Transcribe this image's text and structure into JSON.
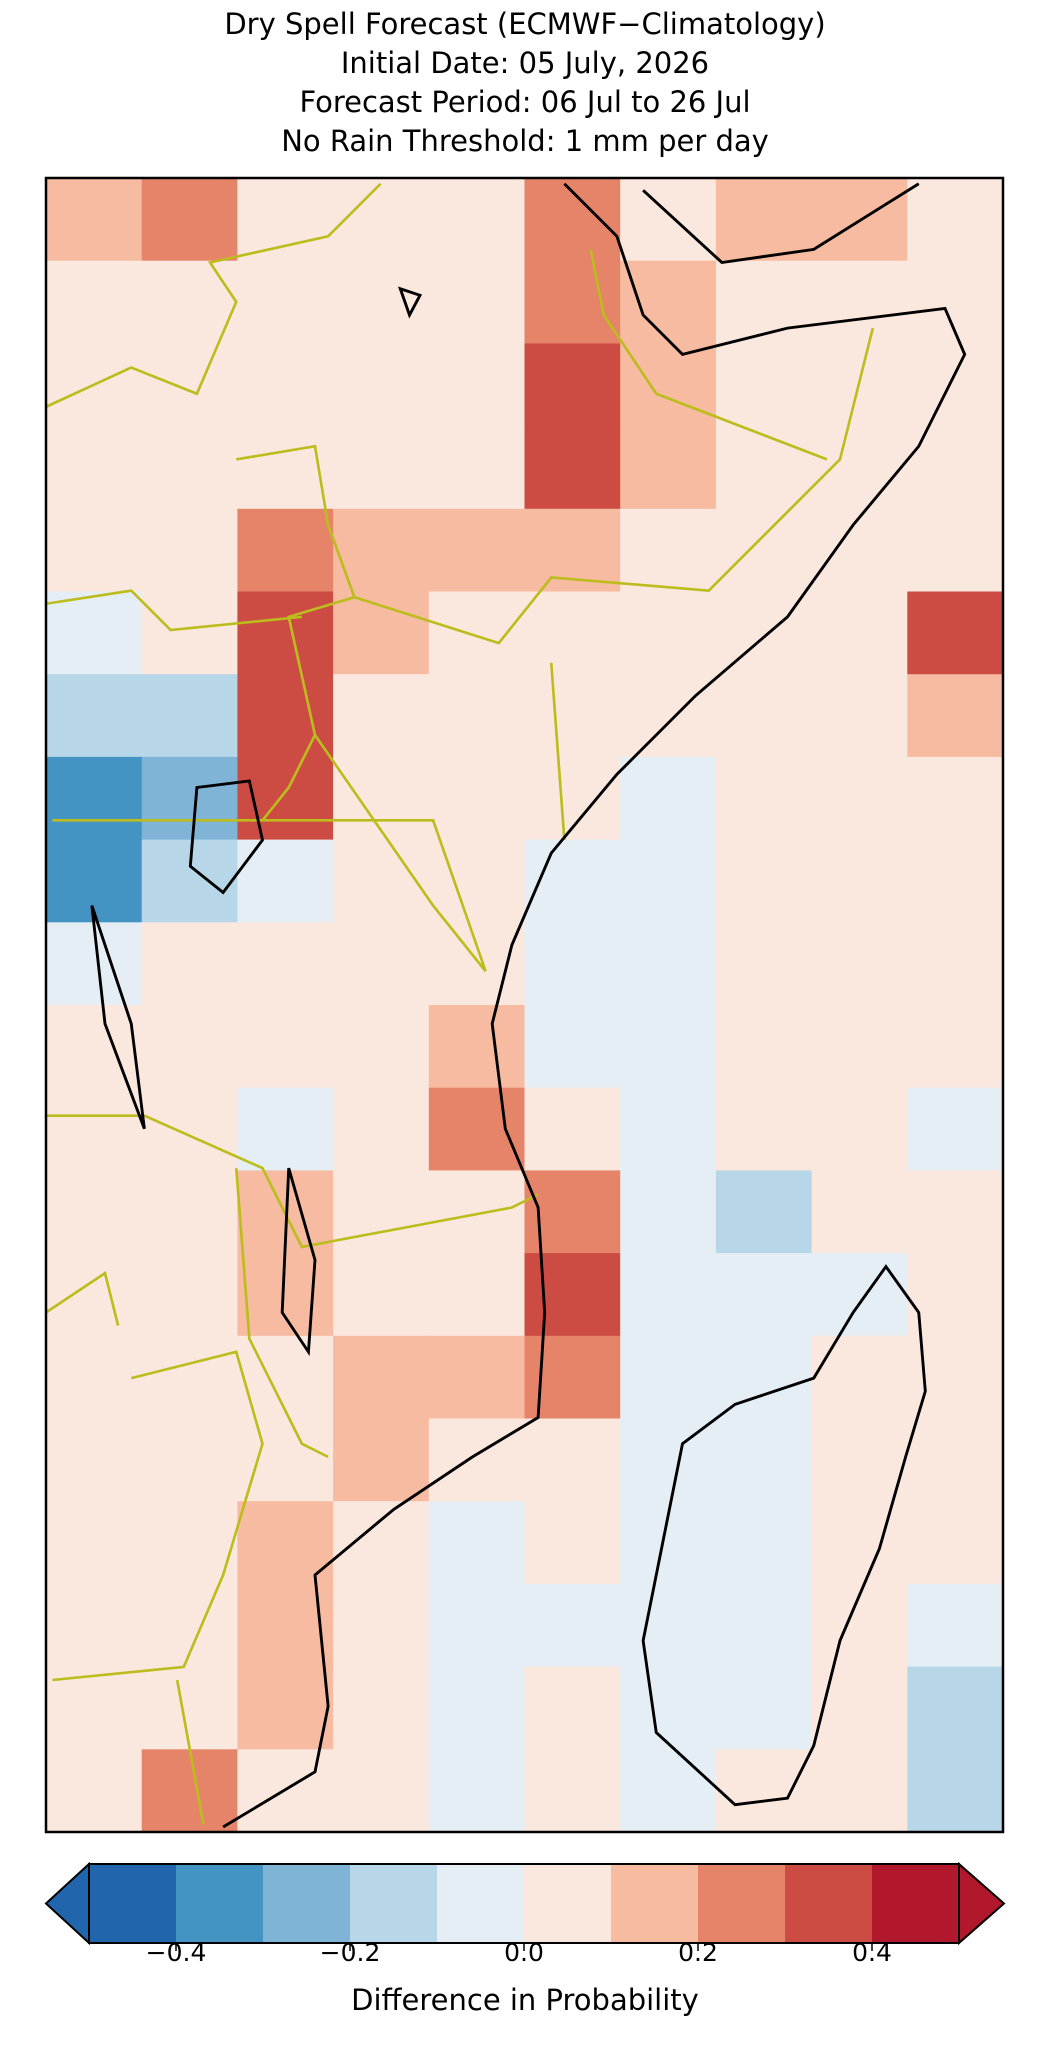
{
  "chart_data": {
    "type": "heatmap",
    "title": [
      "Dry Spell Forecast (ECMWF−Climatology)",
      "Initial Date: 05 July, 2026",
      "Forecast Period: 06 Jul to 26 Jul",
      "No Rain Threshold: 1 mm per day"
    ],
    "z": [
      [
        0.2,
        0.3,
        0.1,
        0.05,
        0.05,
        0.3,
        0.1,
        0.15,
        0.2,
        0.05
      ],
      [
        0.05,
        0.05,
        0.05,
        0.05,
        0.05,
        0.3,
        0.2,
        0.1,
        0.05,
        0.05
      ],
      [
        0.05,
        0.05,
        0.05,
        0.05,
        0.05,
        0.35,
        0.15,
        0.05,
        0.05,
        0.05
      ],
      [
        0.05,
        0.05,
        0.1,
        0.05,
        0.05,
        0.35,
        0.15,
        0.05,
        0.05,
        0.05
      ],
      [
        0.05,
        0.1,
        0.25,
        0.15,
        0.2,
        0.15,
        0.05,
        0.05,
        0.05,
        0.1
      ],
      [
        0.0,
        0.05,
        0.35,
        0.15,
        0.05,
        0.05,
        0.05,
        0.05,
        0.05,
        0.35
      ],
      [
        -0.15,
        -0.15,
        0.35,
        0.05,
        0.05,
        0.05,
        0.05,
        0.05,
        0.1,
        0.15
      ],
      [
        -0.3,
        -0.25,
        0.35,
        0.05,
        0.05,
        0.05,
        0.0,
        0.05,
        0.05,
        0.05
      ],
      [
        -0.3,
        -0.1,
        0.0,
        0.05,
        0.05,
        0.0,
        -0.05,
        0.05,
        0.1,
        0.05
      ],
      [
        0.0,
        0.05,
        0.05,
        0.05,
        0.1,
        0.0,
        -0.05,
        0.05,
        0.1,
        0.1
      ],
      [
        0.05,
        0.05,
        0.05,
        0.05,
        0.2,
        0.0,
        0.0,
        0.05,
        0.05,
        0.05
      ],
      [
        0.05,
        0.05,
        0.0,
        0.05,
        0.25,
        0.05,
        0.0,
        0.05,
        0.05,
        0.0
      ],
      [
        0.05,
        0.05,
        0.15,
        0.05,
        0.05,
        0.25,
        0.0,
        -0.1,
        0.05,
        0.05
      ],
      [
        0.05,
        0.05,
        0.15,
        0.05,
        0.05,
        0.35,
        0.0,
        -0.05,
        0.0,
        0.05
      ],
      [
        0.05,
        0.1,
        0.1,
        0.15,
        0.15,
        0.25,
        0.0,
        0.0,
        0.05,
        0.05
      ],
      [
        0.05,
        0.05,
        0.1,
        0.2,
        0.1,
        0.05,
        0.0,
        0.0,
        0.05,
        0.05
      ],
      [
        0.05,
        0.05,
        0.15,
        0.1,
        0.0,
        0.05,
        0.0,
        0.0,
        0.05,
        0.05
      ],
      [
        0.05,
        0.05,
        0.2,
        0.1,
        0.0,
        0.0,
        0.0,
        0.0,
        0.05,
        -0.05
      ],
      [
        0.05,
        0.05,
        0.15,
        0.1,
        -0.05,
        0.05,
        0.0,
        0.0,
        0.05,
        -0.1
      ],
      [
        0.05,
        0.25,
        0.1,
        0.05,
        -0.05,
        0.05,
        0.0,
        0.05,
        0.05,
        -0.1
      ]
    ],
    "colorbar": {
      "label": "Difference in Probability",
      "boundaries": [
        -0.5,
        -0.4,
        -0.3,
        -0.2,
        -0.1,
        0,
        0.1,
        0.2,
        0.3,
        0.4,
        0.5
      ],
      "colors": [
        "#2166ac",
        "#4393c3",
        "#7fb4d6",
        "#b7d6e8",
        "#e5eef4",
        "#fae8de",
        "#f6bba0",
        "#e6846a",
        "#cc4c43",
        "#b2182b"
      ],
      "extend": "both",
      "ticks": [
        {
          "value": -0.4,
          "label": "−0.4"
        },
        {
          "value": -0.2,
          "label": "−0.2"
        },
        {
          "value": 0,
          "label": "0.0"
        },
        0.2,
        0.4
      ]
    }
  }
}
